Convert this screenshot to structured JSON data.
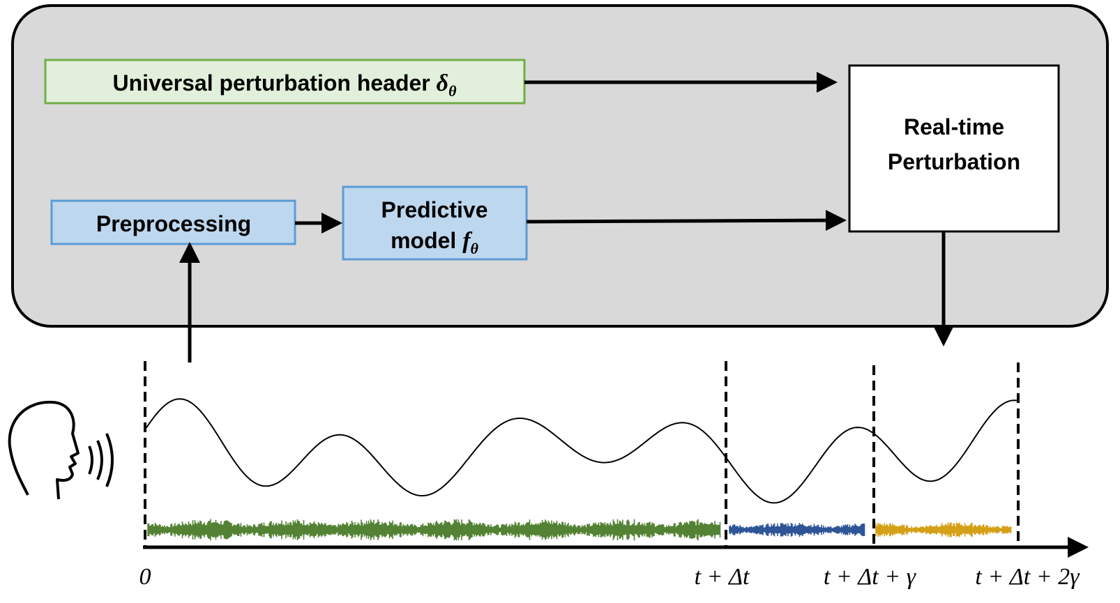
{
  "header_box": {
    "label": "Universal perturbation header",
    "symbol": "δ",
    "subscript": "θ"
  },
  "preprocessing_box": {
    "label": "Preprocessing"
  },
  "predictive_box": {
    "line1": "Predictive",
    "line2": "model",
    "symbol": "f",
    "subscript": "θ"
  },
  "realtime_box": {
    "line1": "Real-time",
    "line2": "Perturbation"
  },
  "timeline": {
    "labels": [
      "0",
      "t + Δt",
      "t + Δt + γ",
      "t + Δt + 2γ"
    ]
  }
}
